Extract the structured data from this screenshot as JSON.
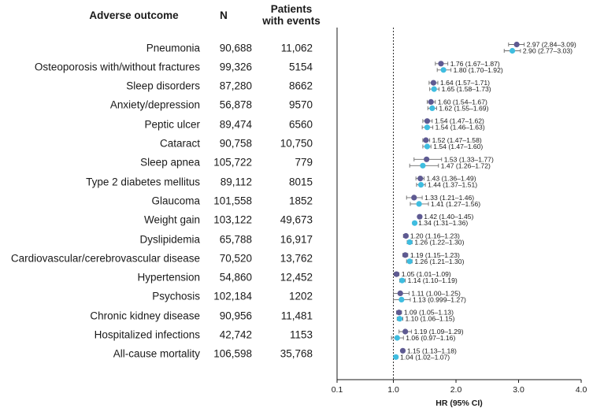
{
  "headers": {
    "outcome": "Adverse outcome",
    "n": "N",
    "events_line1": "Patients",
    "events_line2": "with events"
  },
  "rows": [
    {
      "outcome": "Pneumonia",
      "n": "90,688",
      "events": "11,062"
    },
    {
      "outcome": "Osteoporosis with/without fractures",
      "n": "99,326",
      "events": "5154"
    },
    {
      "outcome": "Sleep disorders",
      "n": "87,280",
      "events": "8662"
    },
    {
      "outcome": "Anxiety/depression",
      "n": "56,878",
      "events": "9570"
    },
    {
      "outcome": "Peptic ulcer",
      "n": "89,474",
      "events": "6560"
    },
    {
      "outcome": "Cataract",
      "n": "90,758",
      "events": "10,750"
    },
    {
      "outcome": "Sleep apnea",
      "n": "105,722",
      "events": "779"
    },
    {
      "outcome": "Type 2 diabetes mellitus",
      "n": "89,112",
      "events": "8015"
    },
    {
      "outcome": "Glaucoma",
      "n": "101,558",
      "events": "1852"
    },
    {
      "outcome": "Weight gain",
      "n": "103,122",
      "events": "49,673"
    },
    {
      "outcome": "Dyslipidemia",
      "n": "65,788",
      "events": "16,917"
    },
    {
      "outcome": "Cardiovascular/cerebrovascular disease",
      "n": "70,520",
      "events": "13,762"
    },
    {
      "outcome": "Hypertension",
      "n": "54,860",
      "events": "12,452"
    },
    {
      "outcome": "Psychosis",
      "n": "102,184",
      "events": "1202"
    },
    {
      "outcome": "Chronic kidney disease",
      "n": "90,956",
      "events": "11,481"
    },
    {
      "outcome": "Hospitalized infections",
      "n": "42,742",
      "events": "1153"
    },
    {
      "outcome": "All-cause mortality",
      "n": "106,598",
      "events": "35,768"
    }
  ],
  "chart_data": {
    "type": "forest",
    "xlabel": "HR (95% CI)",
    "xlim": [
      0.1,
      4.0
    ],
    "xticks": [
      0.1,
      1.0,
      2.0,
      3.0,
      4.0
    ],
    "xtick_labels": [
      "0.1",
      "1.0",
      "2.0",
      "3.0",
      "4.0"
    ],
    "reference_line": 1.0,
    "colors": {
      "series1": "#5e5a92",
      "series2": "#3fbde0",
      "ci": "#6b6b6b",
      "axis": "#1a1a1a"
    },
    "series": [
      {
        "name": "series1",
        "points": [
          {
            "hr": 2.97,
            "lo": 2.84,
            "hi": 3.09,
            "label": "2.97 (2.84–3.09)"
          },
          {
            "hr": 1.76,
            "lo": 1.67,
            "hi": 1.87,
            "label": "1.76 (1.67–1.87)"
          },
          {
            "hr": 1.64,
            "lo": 1.57,
            "hi": 1.71,
            "label": "1.64 (1.57–1.71)"
          },
          {
            "hr": 1.6,
            "lo": 1.54,
            "hi": 1.67,
            "label": "1.60 (1.54–1.67)"
          },
          {
            "hr": 1.54,
            "lo": 1.47,
            "hi": 1.62,
            "label": "1.54 (1.47–1.62)"
          },
          {
            "hr": 1.52,
            "lo": 1.47,
            "hi": 1.58,
            "label": "1.52 (1.47–1.58)"
          },
          {
            "hr": 1.53,
            "lo": 1.33,
            "hi": 1.77,
            "label": "1.53 (1.33–1.77)"
          },
          {
            "hr": 1.43,
            "lo": 1.36,
            "hi": 1.49,
            "label": "1.43 (1.36–1.49)"
          },
          {
            "hr": 1.33,
            "lo": 1.21,
            "hi": 1.46,
            "label": "1.33 (1.21–1.46)"
          },
          {
            "hr": 1.42,
            "lo": 1.4,
            "hi": 1.45,
            "label": "1.42 (1.40–1.45)"
          },
          {
            "hr": 1.2,
            "lo": 1.16,
            "hi": 1.23,
            "label": "1.20 (1.16–1.23)"
          },
          {
            "hr": 1.19,
            "lo": 1.15,
            "hi": 1.23,
            "label": "1.19 (1.15–1.23)"
          },
          {
            "hr": 1.05,
            "lo": 1.01,
            "hi": 1.09,
            "label": "1.05 (1.01–1.09)"
          },
          {
            "hr": 1.11,
            "lo": 1.0,
            "hi": 1.25,
            "label": "1.11 (1.00–1.25)"
          },
          {
            "hr": 1.09,
            "lo": 1.05,
            "hi": 1.13,
            "label": "1.09 (1.05–1.13)"
          },
          {
            "hr": 1.19,
            "lo": 1.09,
            "hi": 1.29,
            "label": "1.19 (1.09–1.29)"
          },
          {
            "hr": 1.15,
            "lo": 1.13,
            "hi": 1.18,
            "label": "1.15 (1.13–1.18)"
          }
        ]
      },
      {
        "name": "series2",
        "points": [
          {
            "hr": 2.9,
            "lo": 2.77,
            "hi": 3.03,
            "label": "2.90 (2.77–3.03)"
          },
          {
            "hr": 1.8,
            "lo": 1.7,
            "hi": 1.92,
            "label": "1.80 (1.70–1.92)"
          },
          {
            "hr": 1.65,
            "lo": 1.58,
            "hi": 1.73,
            "label": "1.65 (1.58–1.73)"
          },
          {
            "hr": 1.62,
            "lo": 1.55,
            "hi": 1.69,
            "label": "1.62 (1.55–1.69)"
          },
          {
            "hr": 1.54,
            "lo": 1.46,
            "hi": 1.63,
            "label": "1.54 (1.46–1.63)"
          },
          {
            "hr": 1.54,
            "lo": 1.47,
            "hi": 1.6,
            "label": "1.54 (1.47–1.60)"
          },
          {
            "hr": 1.47,
            "lo": 1.26,
            "hi": 1.72,
            "label": "1.47 (1.26–1.72)"
          },
          {
            "hr": 1.44,
            "lo": 1.37,
            "hi": 1.51,
            "label": "1.44 (1.37–1.51)"
          },
          {
            "hr": 1.41,
            "lo": 1.27,
            "hi": 1.56,
            "label": "1.41 (1.27–1.56)"
          },
          {
            "hr": 1.34,
            "lo": 1.31,
            "hi": 1.36,
            "label": "1.34 (1.31–1.36)"
          },
          {
            "hr": 1.26,
            "lo": 1.22,
            "hi": 1.3,
            "label": "1.26 (1.22–1.30)"
          },
          {
            "hr": 1.26,
            "lo": 1.21,
            "hi": 1.3,
            "label": "1.26 (1.21–1.30)"
          },
          {
            "hr": 1.14,
            "lo": 1.1,
            "hi": 1.19,
            "label": "1.14 (1.10–1.19)"
          },
          {
            "hr": 1.13,
            "lo": 0.999,
            "hi": 1.27,
            "label": "1.13 (0.999–1.27)"
          },
          {
            "hr": 1.1,
            "lo": 1.06,
            "hi": 1.15,
            "label": "1.10 (1.06–1.15)"
          },
          {
            "hr": 1.06,
            "lo": 0.97,
            "hi": 1.16,
            "label": "1.06 (0.97–1.16)"
          },
          {
            "hr": 1.04,
            "lo": 1.02,
            "hi": 1.07,
            "label": "1.04 (1.02–1.07)"
          }
        ]
      }
    ]
  }
}
